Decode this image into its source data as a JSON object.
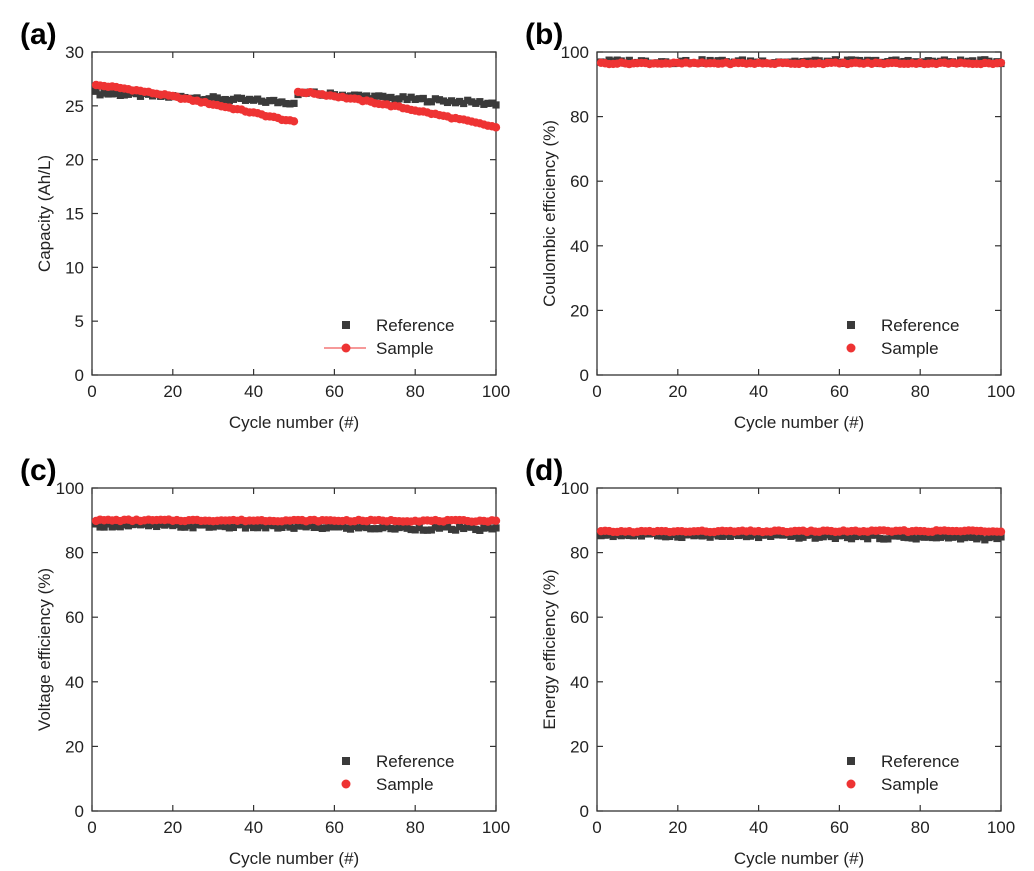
{
  "colors": {
    "reference": "#3a3a3a",
    "sample": "#ee3333",
    "axis": "#333333"
  },
  "legend": {
    "position": "bottom-right"
  },
  "chart_data": [
    {
      "panel": "(a)",
      "type": "scatter",
      "xlabel": "Cycle number (#)",
      "ylabel": "Capacity (Ah/L)",
      "xlim": [
        0,
        100
      ],
      "ylim": [
        0,
        30
      ],
      "xticks": [
        "0",
        "20",
        "40",
        "60",
        "80",
        "100"
      ],
      "yticks": [
        "0",
        "5",
        "10",
        "15",
        "20",
        "25",
        "30"
      ],
      "sample_line": true,
      "series": [
        {
          "name": "Reference",
          "marker": "square",
          "segments": [
            {
              "x0": 1,
              "x1": 50,
              "y0": 26.2,
              "y1": 25.3
            },
            {
              "x0": 51,
              "x1": 100,
              "y0": 26.2,
              "y1": 25.2
            }
          ]
        },
        {
          "name": "Sample",
          "marker": "circle",
          "segments": [
            {
              "x0": 1,
              "x1": 50,
              "y0": 26.9,
              "y1": 23.5
            },
            {
              "x0": 51,
              "x1": 100,
              "y0": 26.3,
              "y1": 23.0
            }
          ]
        }
      ]
    },
    {
      "panel": "(b)",
      "type": "scatter",
      "xlabel": "Cycle number (#)",
      "ylabel": "Coulombic efficiency (%)",
      "xlim": [
        0,
        100
      ],
      "ylim": [
        0,
        100
      ],
      "xticks": [
        "0",
        "20",
        "40",
        "60",
        "80",
        "100"
      ],
      "yticks": [
        "0",
        "20",
        "40",
        "60",
        "80",
        "100"
      ],
      "sample_line": false,
      "series": [
        {
          "name": "Reference",
          "marker": "square",
          "segments": [
            {
              "x0": 1,
              "x1": 100,
              "y0": 97.0,
              "y1": 97.0
            }
          ]
        },
        {
          "name": "Sample",
          "marker": "circle",
          "segments": [
            {
              "x0": 1,
              "x1": 100,
              "y0": 96.5,
              "y1": 96.5
            }
          ]
        }
      ]
    },
    {
      "panel": "(c)",
      "type": "scatter",
      "xlabel": "Cycle number (#)",
      "ylabel": "Voltage efficiency (%)",
      "xlim": [
        0,
        100
      ],
      "ylim": [
        0,
        100
      ],
      "xticks": [
        "0",
        "20",
        "40",
        "60",
        "80",
        "100"
      ],
      "yticks": [
        "0",
        "20",
        "40",
        "60",
        "80",
        "100"
      ],
      "sample_line": false,
      "series": [
        {
          "name": "Reference",
          "marker": "square",
          "segments": [
            {
              "x0": 1,
              "x1": 100,
              "y0": 88.5,
              "y1": 87.3
            }
          ]
        },
        {
          "name": "Sample",
          "marker": "circle",
          "segments": [
            {
              "x0": 1,
              "x1": 100,
              "y0": 90.0,
              "y1": 89.8
            }
          ]
        }
      ]
    },
    {
      "panel": "(d)",
      "type": "scatter",
      "xlabel": "Cycle number (#)",
      "ylabel": "Energy efficiency (%)",
      "xlim": [
        0,
        100
      ],
      "ylim": [
        0,
        100
      ],
      "xticks": [
        "0",
        "20",
        "40",
        "60",
        "80",
        "100"
      ],
      "yticks": [
        "0",
        "20",
        "40",
        "60",
        "80",
        "100"
      ],
      "sample_line": false,
      "series": [
        {
          "name": "Reference",
          "marker": "square",
          "segments": [
            {
              "x0": 1,
              "x1": 100,
              "y0": 85.5,
              "y1": 84.5
            }
          ]
        },
        {
          "name": "Sample",
          "marker": "circle",
          "segments": [
            {
              "x0": 1,
              "x1": 100,
              "y0": 86.5,
              "y1": 86.7
            }
          ]
        }
      ]
    }
  ]
}
